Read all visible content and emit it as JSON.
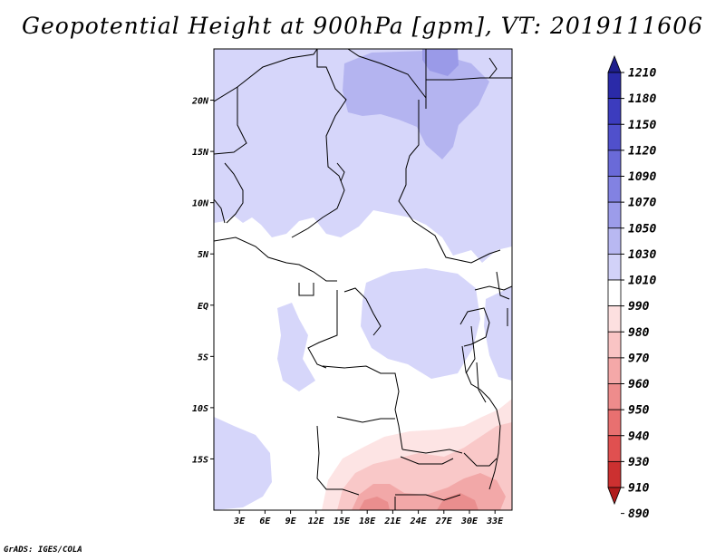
{
  "title": "Geopotential Height at 900hPa [gpm], VT: 2019111606",
  "footer": "GrADS: IGES/COLA",
  "map": {
    "lon_range": [
      0,
      35
    ],
    "lat_range": [
      -20,
      25
    ],
    "lon_ticks": [
      {
        "value": 3,
        "label": "3E"
      },
      {
        "value": 6,
        "label": "6E"
      },
      {
        "value": 9,
        "label": "9E"
      },
      {
        "value": 12,
        "label": "12E"
      },
      {
        "value": 15,
        "label": "15E"
      },
      {
        "value": 18,
        "label": "18E"
      },
      {
        "value": 21,
        "label": "21E"
      },
      {
        "value": 24,
        "label": "24E"
      },
      {
        "value": 27,
        "label": "27E"
      },
      {
        "value": 30,
        "label": "30E"
      },
      {
        "value": 33,
        "label": "33E"
      }
    ],
    "lat_ticks": [
      {
        "value": 20,
        "label": "20N"
      },
      {
        "value": 15,
        "label": "15N"
      },
      {
        "value": 10,
        "label": "10N"
      },
      {
        "value": 5,
        "label": "5N"
      },
      {
        "value": 0,
        "label": "EQ"
      },
      {
        "value": -5,
        "label": "5S"
      },
      {
        "value": -10,
        "label": "10S"
      },
      {
        "value": -15,
        "label": "15S"
      }
    ]
  },
  "colorbar": {
    "levels": [
      "1210",
      "1180",
      "1150",
      "1120",
      "1090",
      "1070",
      "1050",
      "1030",
      "1010",
      "990",
      "980",
      "970",
      "960",
      "950",
      "940",
      "930",
      "910",
      "890"
    ],
    "colors": [
      "#1e1e8c",
      "#2a2aa8",
      "#3c3cbe",
      "#5050cc",
      "#6a6ad8",
      "#8282e2",
      "#9c9cea",
      "#b8b8f2",
      "#d2d2f8",
      "#ffffff",
      "#fde0e0",
      "#f9c4c4",
      "#f4a8a8",
      "#ee8c8c",
      "#e87070",
      "#e05050",
      "#cc3030",
      "#b01c1c"
    ]
  }
}
